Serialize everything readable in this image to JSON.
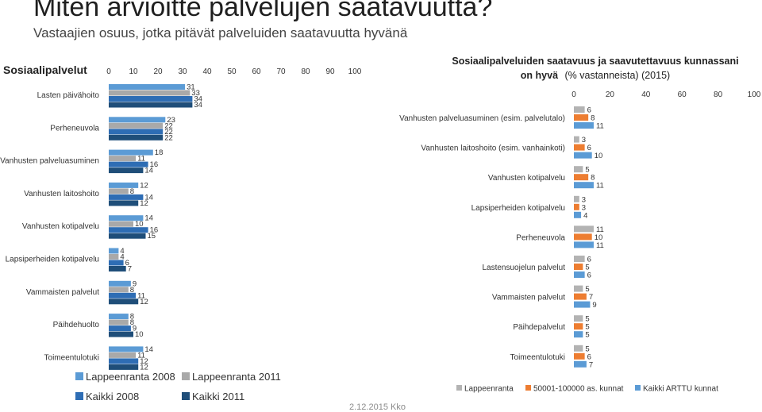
{
  "page": {
    "title": "Miten arvioitte palvelujen saatavuutta?",
    "subtitle": "Vastaajien osuus, jotka pitävät palveluiden saatavuutta hyvänä",
    "footer": "2.12.2015 Kko"
  },
  "chart_data": [
    {
      "type": "bar",
      "orientation": "horizontal",
      "section_label": "Sosiaalipalvelut",
      "xlim": [
        0,
        100
      ],
      "xticks": [
        0,
        10,
        20,
        30,
        40,
        50,
        60,
        70,
        80,
        90,
        100
      ],
      "categories": [
        "Lasten päivähoito",
        "Perheneuvola",
        "Vanhusten palveluasuminen",
        "Vanhusten laitoshoito",
        "Vanhusten kotipalvelu",
        "Lapsiperheiden kotipalvelu",
        "Vammaisten palvelut",
        "Päihdehuolto",
        "Toimeentulotuki"
      ],
      "series": [
        {
          "name": "Lappeenranta 2008",
          "color": "#5b9bd5",
          "values": [
            31,
            23,
            18,
            12,
            14,
            4,
            9,
            8,
            14
          ]
        },
        {
          "name": "Lappeenranta 2011",
          "color": "#a9a9a9",
          "values": [
            33,
            22,
            11,
            8,
            10,
            4,
            8,
            8,
            11
          ]
        },
        {
          "name": "Kaikki 2008",
          "color": "#2e6db4",
          "values": [
            34,
            22,
            16,
            14,
            16,
            6,
            11,
            9,
            12
          ]
        },
        {
          "name": "Kaikki  2011",
          "color": "#1f4e79",
          "values": [
            34,
            22,
            14,
            12,
            15,
            7,
            12,
            10,
            12
          ]
        }
      ],
      "legend": "bottom",
      "grid": false
    },
    {
      "type": "bar",
      "orientation": "horizontal",
      "title": "Sosiaalipalveluiden saatavuus ja saavutettavuus kunnassani",
      "title_line2": "on hyvä",
      "title_note": "(% vastanneista) (2015)",
      "xlim": [
        0,
        100
      ],
      "xticks": [
        0,
        20,
        40,
        60,
        80,
        100
      ],
      "categories": [
        "Vanhusten palveluasuminen (esim. palvelutalo)",
        "Vanhusten laitoshoito (esim. vanhainkoti)",
        "Vanhusten kotipalvelu",
        "Lapsiperheiden kotipalvelu",
        "Perheneuvola",
        "Lastensuojelun palvelut",
        "Vammaisten palvelut",
        "Päihdepalvelut",
        "Toimeentulotuki"
      ],
      "series": [
        {
          "name": "Lappeenranta",
          "color": "#b3b3b3",
          "values": [
            6,
            3,
            5,
            3,
            11,
            6,
            5,
            5,
            5
          ]
        },
        {
          "name": "50001-100000 as. kunnat",
          "color": "#ed7d31",
          "values": [
            8,
            6,
            8,
            3,
            10,
            5,
            7,
            5,
            6
          ]
        },
        {
          "name": "Kaikki ARTTU kunnat",
          "color": "#5b9bd5",
          "values": [
            11,
            10,
            11,
            4,
            11,
            6,
            9,
            5,
            7
          ]
        }
      ],
      "legend": "bottom",
      "grid": false
    }
  ]
}
